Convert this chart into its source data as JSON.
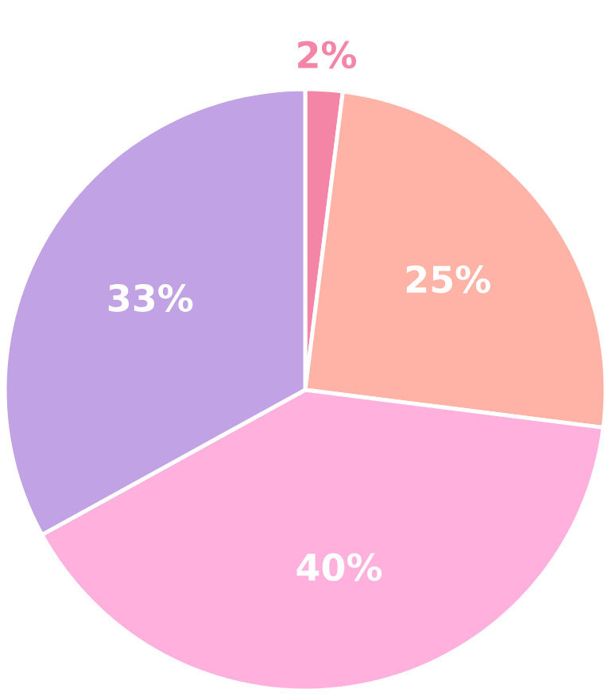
{
  "chart_data": {
    "type": "pie",
    "categories": [
      null,
      null,
      null,
      null
    ],
    "values": [
      2,
      25,
      40,
      33
    ],
    "value_labels": [
      "2%",
      "25%",
      "40%",
      "33%"
    ],
    "colors": [
      "#f585a6",
      "#ffb2a6",
      "#ffb0dc",
      "#c1a2e4"
    ]
  }
}
